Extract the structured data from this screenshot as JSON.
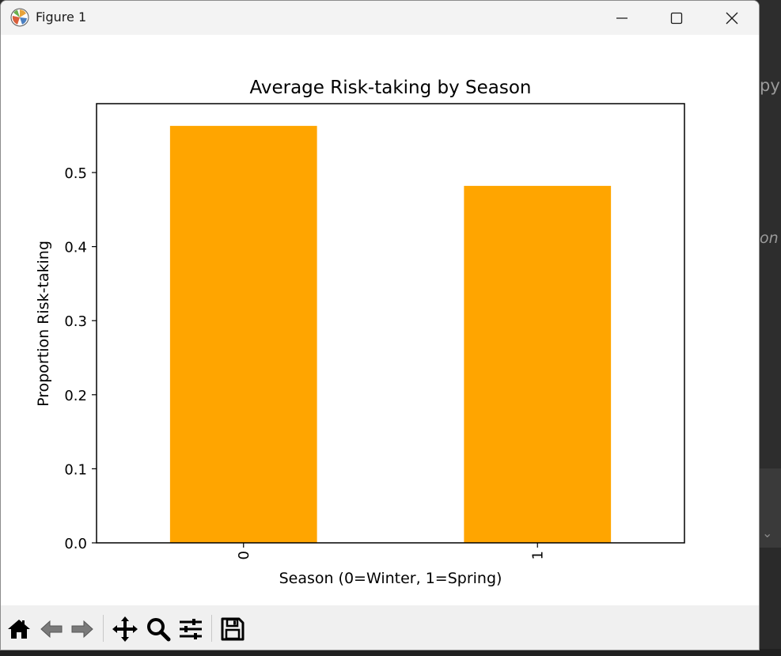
{
  "window": {
    "title": "Figure 1"
  },
  "background": {
    "fragment_top": "py",
    "fragment_mid": "on"
  },
  "toolbar": {
    "buttons": [
      {
        "name": "home-button",
        "icon": "home-icon"
      },
      {
        "name": "back-button",
        "icon": "arrow-left-icon"
      },
      {
        "name": "forward-button",
        "icon": "arrow-right-icon"
      },
      {
        "name": "pan-button",
        "icon": "move-icon"
      },
      {
        "name": "zoom-button",
        "icon": "magnifier-icon"
      },
      {
        "name": "configure-subplots-button",
        "icon": "sliders-icon"
      },
      {
        "name": "save-button",
        "icon": "floppy-disk-icon"
      }
    ]
  },
  "chart_data": {
    "type": "bar",
    "title": "Average Risk-taking by Season",
    "xlabel": "Season (0=Winter, 1=Spring)",
    "ylabel": "Proportion Risk-taking",
    "categories": [
      "0",
      "1"
    ],
    "values": [
      0.563,
      0.482
    ],
    "ylim": [
      0.0,
      0.593
    ],
    "yticks": [
      0.0,
      0.1,
      0.2,
      0.3,
      0.4,
      0.5
    ],
    "ytick_labels": [
      "0.0",
      "0.1",
      "0.2",
      "0.3",
      "0.4",
      "0.5"
    ],
    "bar_color": "#ffa500",
    "grid": false,
    "legend": "none"
  }
}
